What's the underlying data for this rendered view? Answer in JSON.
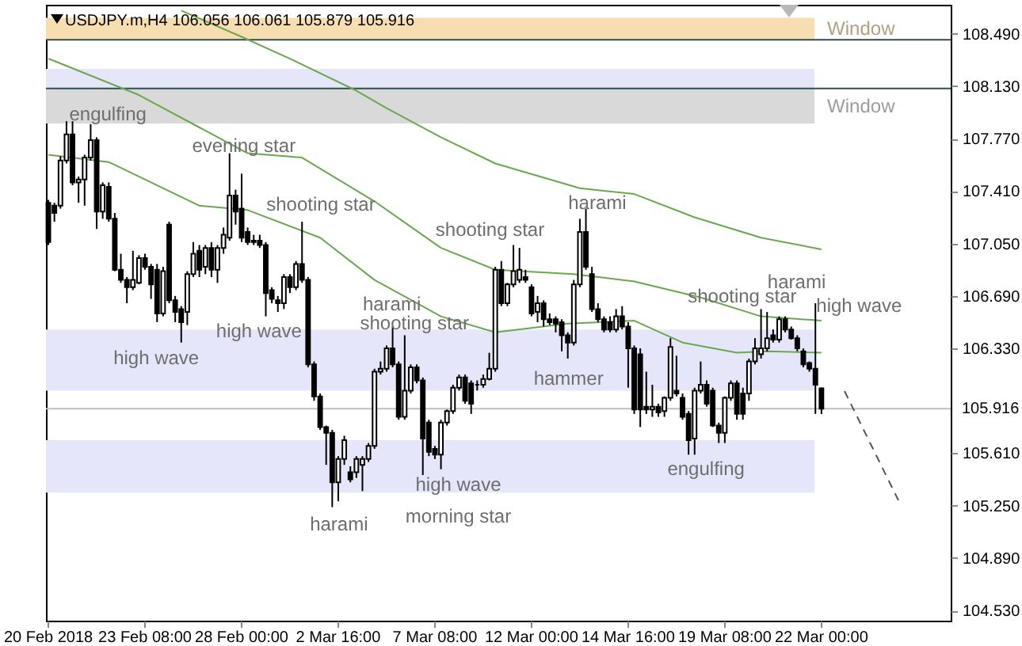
{
  "chart_data": {
    "type": "candlestick",
    "title": "USDJPY.m,H4  106.056 106.061 105.879 105.916",
    "categories": [
      "20 Feb 2018",
      null,
      null,
      null,
      null,
      null,
      null,
      null,
      null,
      null,
      null,
      null,
      null,
      null,
      null,
      null,
      "23 Feb 08:00",
      null,
      null,
      null,
      null,
      null,
      null,
      null,
      null,
      null,
      null,
      null,
      null,
      null,
      null,
      null,
      "28 Feb 00:00",
      null,
      null,
      null,
      null,
      null,
      null,
      null,
      null,
      null,
      null,
      null,
      null,
      null,
      null,
      null,
      "2 Mar 16:00",
      null,
      null,
      null,
      null,
      null,
      null,
      null,
      null,
      null,
      null,
      null,
      null,
      null,
      null,
      null,
      "7 Mar 08:00",
      null,
      null,
      null,
      null,
      null,
      null,
      null,
      null,
      null,
      null,
      null,
      null,
      null,
      null,
      null,
      "12 Mar 00:00",
      null,
      null,
      null,
      null,
      null,
      null,
      null,
      null,
      null,
      null,
      null,
      null,
      null,
      null,
      null,
      "14 Mar 16:00",
      null,
      null,
      null,
      null,
      null,
      null,
      null,
      null,
      null,
      null,
      null,
      null,
      null,
      null,
      null,
      "19 Mar 08:00",
      null,
      null,
      null,
      null,
      null,
      null,
      null,
      null,
      null,
      null,
      null,
      null,
      null,
      null,
      null,
      "22 Mar 00:00",
      null,
      null,
      null,
      null,
      null,
      null,
      null,
      null,
      null,
      null,
      null,
      null,
      null,
      null,
      null,
      null,
      null,
      null,
      null,
      null,
      null
    ],
    "ohlc": [
      [
        107.33,
        107.35,
        107.04,
        107.06
      ],
      [
        107.31,
        107.33,
        107.2,
        107.26
      ],
      [
        107.31,
        107.65,
        107.29,
        107.62
      ],
      [
        107.62,
        107.89,
        107.6,
        107.8
      ],
      [
        107.8,
        107.89,
        107.45,
        107.47
      ],
      [
        107.47,
        107.51,
        107.33,
        107.49
      ],
      [
        107.49,
        107.66,
        107.31,
        107.64
      ],
      [
        107.64,
        107.87,
        107.62,
        107.76
      ],
      [
        107.76,
        107.78,
        107.15,
        107.27
      ],
      [
        107.27,
        107.47,
        107.22,
        107.45
      ],
      [
        107.44,
        107.47,
        107.2,
        107.22
      ],
      [
        107.22,
        107.26,
        106.86,
        106.87
      ],
      [
        106.87,
        106.98,
        106.78,
        106.8
      ],
      [
        106.8,
        106.82,
        106.64,
        106.75
      ],
      [
        106.75,
        107.0,
        106.73,
        106.8
      ],
      [
        106.78,
        106.97,
        106.77,
        106.95
      ],
      [
        106.95,
        106.98,
        106.87,
        106.89
      ],
      [
        106.89,
        106.91,
        106.67,
        106.77
      ],
      [
        106.87,
        106.91,
        106.51,
        106.57
      ],
      [
        106.57,
        106.89,
        106.55,
        106.86
      ],
      [
        107.18,
        107.2,
        106.64,
        106.66
      ],
      [
        106.66,
        106.69,
        106.51,
        106.58
      ],
      [
        106.6,
        106.62,
        106.37,
        106.51
      ],
      [
        106.58,
        106.86,
        106.49,
        106.84
      ],
      [
        106.84,
        107.06,
        106.82,
        106.98
      ],
      [
        107.0,
        107.04,
        106.82,
        106.87
      ],
      [
        106.89,
        107.04,
        106.84,
        107.02
      ],
      [
        107.02,
        107.06,
        106.82,
        106.87
      ],
      [
        106.87,
        107.04,
        106.78,
        107.02
      ],
      [
        107.02,
        107.16,
        106.98,
        107.11
      ],
      [
        107.09,
        107.67,
        107.07,
        107.38
      ],
      [
        107.38,
        107.42,
        107.18,
        107.27
      ],
      [
        107.29,
        107.53,
        107.06,
        107.09
      ],
      [
        107.13,
        107.16,
        107.04,
        107.06
      ],
      [
        107.07,
        107.11,
        107.04,
        107.06
      ],
      [
        107.07,
        107.11,
        107.02,
        107.04
      ],
      [
        107.04,
        107.06,
        106.55,
        106.71
      ],
      [
        106.73,
        106.75,
        106.64,
        106.67
      ],
      [
        106.66,
        106.69,
        106.58,
        106.64
      ],
      [
        106.64,
        106.84,
        106.6,
        106.82
      ],
      [
        106.82,
        106.84,
        106.71,
        106.75
      ],
      [
        106.75,
        106.93,
        106.73,
        106.91
      ],
      [
        106.91,
        107.2,
        106.78,
        106.8
      ],
      [
        106.8,
        106.82,
        106.2,
        106.22
      ],
      [
        106.22,
        106.24,
        105.97,
        106.0
      ],
      [
        106.0,
        106.02,
        105.77,
        105.79
      ],
      [
        105.79,
        105.8,
        105.53,
        105.75
      ],
      [
        105.75,
        105.77,
        105.24,
        105.41
      ],
      [
        105.41,
        105.59,
        105.28,
        105.57
      ],
      [
        105.57,
        105.73,
        105.53,
        105.7
      ],
      [
        105.48,
        105.52,
        105.41,
        105.43
      ],
      [
        105.48,
        105.59,
        105.44,
        105.57
      ],
      [
        105.53,
        105.59,
        105.35,
        105.57
      ],
      [
        105.57,
        105.68,
        105.55,
        105.66
      ],
      [
        105.66,
        106.19,
        105.64,
        106.17
      ],
      [
        106.17,
        106.24,
        106.15,
        106.19
      ],
      [
        106.19,
        106.35,
        106.17,
        106.33
      ],
      [
        106.33,
        106.48,
        106.2,
        106.22
      ],
      [
        106.22,
        106.24,
        105.84,
        105.86
      ],
      [
        105.86,
        106.42,
        105.84,
        106.04
      ],
      [
        106.04,
        106.22,
        106.02,
        106.2
      ],
      [
        106.2,
        106.22,
        106.09,
        106.11
      ],
      [
        106.11,
        106.13,
        105.46,
        105.71
      ],
      [
        105.82,
        105.84,
        105.59,
        105.62
      ],
      [
        105.64,
        105.66,
        105.57,
        105.6
      ],
      [
        105.6,
        105.84,
        105.5,
        105.82
      ],
      [
        105.82,
        105.91,
        105.8,
        105.9
      ],
      [
        105.9,
        106.08,
        105.88,
        106.06
      ],
      [
        106.06,
        106.15,
        106.04,
        106.13
      ],
      [
        106.13,
        106.15,
        105.95,
        105.97
      ],
      [
        106.09,
        106.11,
        105.88,
        105.95
      ],
      [
        106.08,
        106.11,
        106.04,
        106.08
      ],
      [
        106.08,
        106.15,
        106.06,
        106.12
      ],
      [
        106.12,
        106.3,
        106.11,
        106.19
      ],
      [
        106.19,
        106.89,
        106.17,
        106.87
      ],
      [
        106.87,
        106.93,
        106.62,
        106.64
      ],
      [
        106.64,
        106.78,
        106.62,
        106.77
      ],
      [
        106.77,
        107.04,
        106.75,
        106.86
      ],
      [
        106.8,
        107.02,
        106.78,
        106.87
      ],
      [
        106.82,
        106.87,
        106.78,
        106.8
      ],
      [
        106.75,
        106.77,
        106.55,
        106.57
      ],
      [
        106.58,
        106.69,
        106.51,
        106.64
      ],
      [
        106.64,
        106.66,
        106.48,
        106.53
      ],
      [
        106.53,
        106.57,
        106.49,
        106.51
      ],
      [
        106.53,
        106.55,
        106.44,
        106.5
      ],
      [
        106.51,
        106.53,
        106.31,
        106.42
      ],
      [
        106.42,
        106.44,
        106.26,
        106.37
      ],
      [
        106.37,
        106.8,
        106.35,
        106.77
      ],
      [
        106.77,
        107.22,
        106.75,
        107.13
      ],
      [
        107.13,
        107.29,
        106.87,
        106.89
      ],
      [
        106.84,
        106.89,
        106.58,
        106.6
      ],
      [
        106.6,
        106.64,
        106.51,
        106.53
      ],
      [
        106.53,
        106.55,
        106.44,
        106.46
      ],
      [
        106.51,
        106.55,
        106.44,
        106.46
      ],
      [
        106.46,
        106.6,
        106.44,
        106.55
      ],
      [
        106.55,
        106.62,
        106.46,
        106.48
      ],
      [
        106.48,
        106.51,
        106.06,
        106.33
      ],
      [
        106.33,
        106.35,
        105.88,
        105.91
      ],
      [
        106.29,
        106.33,
        105.79,
        105.91
      ],
      [
        105.93,
        106.17,
        105.88,
        105.91
      ],
      [
        105.91,
        106.08,
        105.86,
        105.93
      ],
      [
        105.93,
        105.95,
        105.86,
        105.89
      ],
      [
        105.9,
        106.0,
        105.86,
        105.99
      ],
      [
        105.99,
        106.4,
        105.97,
        106.34
      ],
      [
        106.04,
        106.28,
        106.0,
        106.02
      ],
      [
        105.99,
        106.02,
        105.84,
        105.86
      ],
      [
        105.88,
        105.9,
        105.6,
        105.7
      ],
      [
        105.71,
        106.06,
        105.6,
        106.04
      ],
      [
        106.04,
        106.24,
        106.02,
        106.08
      ],
      [
        106.08,
        106.11,
        105.93,
        105.95
      ],
      [
        106.04,
        106.06,
        105.79,
        105.8
      ],
      [
        105.8,
        105.82,
        105.68,
        105.75
      ],
      [
        105.75,
        106.0,
        105.68,
        105.99
      ],
      [
        105.99,
        106.11,
        105.97,
        106.09
      ],
      [
        106.09,
        106.11,
        105.84,
        105.88
      ],
      [
        106.02,
        106.06,
        105.84,
        105.88
      ],
      [
        106.02,
        106.26,
        105.97,
        106.24
      ],
      [
        106.24,
        106.4,
        106.22,
        106.33
      ],
      [
        106.29,
        106.6,
        106.26,
        106.33
      ],
      [
        106.33,
        106.58,
        106.31,
        106.4
      ],
      [
        106.42,
        106.46,
        106.37,
        106.39
      ],
      [
        106.39,
        106.55,
        106.37,
        106.53
      ],
      [
        106.53,
        106.55,
        106.44,
        106.46
      ],
      [
        106.46,
        106.48,
        106.39,
        106.4
      ],
      [
        106.4,
        106.42,
        106.31,
        106.33
      ],
      [
        106.31,
        106.33,
        106.2,
        106.22
      ],
      [
        106.23,
        106.24,
        106.17,
        106.19
      ],
      [
        106.19,
        106.64,
        105.88,
        106.08
      ],
      [
        106.056,
        106.061,
        105.879,
        105.916
      ],
      null,
      null,
      null,
      null,
      null,
      null,
      null,
      null,
      null,
      null,
      null,
      null,
      null,
      null,
      null,
      null,
      null,
      null,
      null,
      null,
      null
    ],
    "series": [
      {
        "type": "line",
        "color": "#6aa84f",
        "values": [
          null,
          null,
          null,
          null,
          null,
          null,
          null,
          null,
          null,
          null,
          null,
          null,
          null,
          null,
          null,
          null,
          null,
          null,
          null,
          null,
          null,
          null,
          108.65,
          null,
          null,
          null,
          null,
          null,
          null,
          null,
          null,
          null,
          108.47,
          null,
          null,
          null,
          null,
          null,
          null,
          null,
          108.32,
          null,
          null,
          null,
          null,
          null,
          null,
          null,
          null,
          null,
          null,
          108.1,
          null,
          null,
          null,
          null,
          107.98,
          null,
          null,
          null,
          null,
          null,
          null,
          null,
          null,
          107.78,
          null,
          null,
          null,
          null,
          null,
          null,
          null,
          null,
          107.6,
          null,
          null,
          null,
          null,
          null,
          null,
          null,
          null,
          null,
          null,
          null,
          null,
          null,
          107.43,
          null,
          null,
          null,
          null,
          null,
          null,
          null,
          null,
          107.39,
          null,
          null,
          null,
          null,
          null,
          null,
          null,
          null,
          null,
          107.23,
          null,
          null,
          null,
          null,
          null,
          null,
          null,
          null,
          null,
          null,
          107.09,
          null,
          null,
          null,
          null,
          null,
          null,
          null,
          null,
          null,
          107.01,
          null,
          null,
          null,
          null,
          null,
          null,
          null,
          null,
          null,
          null,
          null,
          null,
          null,
          null,
          null,
          null,
          null,
          null,
          null,
          null,
          null
        ]
      },
      {
        "type": "line",
        "color": "#6aa84f",
        "values": [
          108.32,
          null,
          null,
          null,
          null,
          null,
          null,
          null,
          null,
          null,
          null,
          null,
          null,
          null,
          null,
          108.07,
          null,
          null,
          null,
          null,
          null,
          null,
          null,
          null,
          null,
          null,
          null,
          null,
          null,
          null,
          null,
          null,
          null,
          107.67,
          null,
          null,
          null,
          null,
          null,
          null,
          null,
          null,
          107.64,
          null,
          null,
          null,
          null,
          null,
          null,
          null,
          null,
          null,
          null,
          null,
          107.34,
          null,
          null,
          null,
          null,
          null,
          null,
          null,
          null,
          null,
          null,
          107.02,
          null,
          null,
          null,
          null,
          null,
          null,
          null,
          null,
          106.87,
          null,
          null,
          null,
          null,
          null,
          null,
          null,
          null,
          null,
          null,
          null,
          null,
          106.84,
          null,
          null,
          null,
          null,
          null,
          null,
          null,
          null,
          null,
          106.79,
          null,
          null,
          null,
          null,
          null,
          null,
          null,
          null,
          null,
          null,
          106.68,
          null,
          null,
          null,
          null,
          null,
          null,
          null,
          null,
          null,
          106.55,
          null,
          null,
          null,
          null,
          null,
          null,
          null,
          null,
          null,
          106.52,
          null,
          null,
          null,
          null,
          null,
          null,
          null,
          null,
          null,
          null,
          null,
          null,
          null,
          null,
          null,
          null,
          null,
          null,
          null,
          null,
          null
        ]
      },
      {
        "type": "line",
        "color": "#6aa84f",
        "values": [
          107.66,
          null,
          null,
          null,
          null,
          null,
          null,
          null,
          null,
          null,
          107.61,
          null,
          null,
          null,
          null,
          null,
          null,
          null,
          null,
          null,
          null,
          null,
          null,
          null,
          null,
          107.31,
          null,
          null,
          null,
          null,
          null,
          null,
          null,
          107.28,
          null,
          null,
          null,
          null,
          null,
          null,
          null,
          null,
          null,
          null,
          null,
          107.09,
          null,
          null,
          null,
          null,
          null,
          null,
          null,
          null,
          106.8,
          null,
          null,
          null,
          null,
          null,
          null,
          null,
          null,
          null,
          null,
          106.55,
          null,
          null,
          null,
          null,
          null,
          null,
          null,
          null,
          106.44,
          null,
          null,
          null,
          null,
          null,
          null,
          null,
          null,
          null,
          null,
          null,
          106.5,
          null,
          null,
          null,
          null,
          null,
          null,
          null,
          null,
          null,
          null,
          106.52,
          null,
          null,
          null,
          null,
          null,
          null,
          null,
          106.37,
          null,
          null,
          null,
          null,
          null,
          null,
          null,
          null,
          106.3,
          null,
          null,
          null,
          null,
          106.31,
          null,
          null,
          null,
          null,
          null,
          null,
          null,
          null,
          106.3,
          null,
          null,
          null,
          null,
          null,
          null,
          null,
          null,
          null,
          null,
          null,
          null,
          null,
          null,
          null,
          null,
          null,
          null,
          null,
          null,
          null
        ]
      }
    ],
    "ylim": [
      104.46,
      108.69
    ],
    "yticks": [
      {
        "value": 104.53,
        "label": "104.530"
      },
      {
        "value": 104.89,
        "label": "104.890"
      },
      {
        "value": 105.25,
        "label": "105.250"
      },
      {
        "value": 105.61,
        "label": "105.610"
      },
      {
        "value": 106.33,
        "label": "106.330"
      },
      {
        "value": 106.69,
        "label": "106.690"
      },
      {
        "value": 107.05,
        "label": "107.050"
      },
      {
        "value": 107.41,
        "label": "107.410"
      },
      {
        "value": 107.77,
        "label": "107.770"
      },
      {
        "value": 108.13,
        "label": "108.130"
      },
      {
        "value": 108.49,
        "label": "108.490"
      }
    ],
    "bands": [
      {
        "axis": "y",
        "from": 108.45,
        "to": 108.6,
        "label": "Window",
        "color": "#f7deb0"
      },
      {
        "axis": "y",
        "from": 108.115,
        "to": 108.25,
        "color": "#e6e6fa"
      },
      {
        "axis": "y",
        "from": 107.875,
        "to": 108.115,
        "label": "Window",
        "color": "#d9d9d9"
      },
      {
        "axis": "y",
        "from": 106.04,
        "to": 106.46,
        "color": "#e6e6fa"
      },
      {
        "axis": "y",
        "from": 105.34,
        "to": 105.7,
        "color": "#e6e6fa"
      }
    ],
    "ref_lines": [
      {
        "axis": "y",
        "value": 108.45,
        "color": "#2f4f4f"
      },
      {
        "axis": "y",
        "value": 108.115,
        "color": "#2f4f4f"
      },
      {
        "axis": "y",
        "value": 105.916,
        "label": "105.916",
        "color": "#c0c0c0"
      }
    ],
    "annotations": [
      "engulfing",
      "evening star",
      "shooting star",
      "high wave",
      "high wave",
      "harami",
      "shooting star",
      "harami",
      "high wave",
      "morning star",
      "shooting star",
      "harami",
      "hammer",
      "engulfing",
      "shooting star",
      "harami",
      "high wave"
    ]
  }
}
